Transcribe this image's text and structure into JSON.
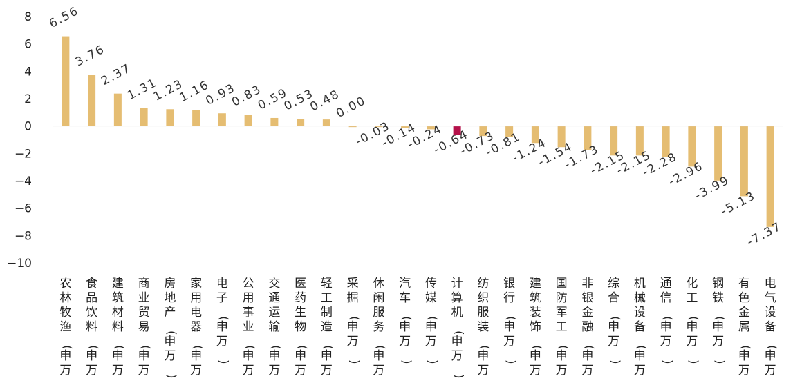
{
  "chart_data": {
    "type": "bar",
    "categories": [
      "农林牧渔(申万)",
      "食品饮料(申万)",
      "建筑材料(申万)",
      "商业贸易(申万)",
      "房地产(申万)",
      "家用电器(申万)",
      "电子(申万)",
      "公用事业(申万)",
      "交通运输(申万)",
      "医药生物(申万)",
      "轻工制造(申万)",
      "采掘(申万)",
      "休闲服务(申万)",
      "汽车(申万)",
      "传媒(申万)",
      "计算机(申万)",
      "纺织服装(申万)",
      "银行(申万)",
      "建筑装饰(申万)",
      "国防军工(申万)",
      "非银金融(申万)",
      "综合(申万)",
      "机械设备(申万)",
      "通信(申万)",
      "化工(申万)",
      "钢铁(申万)",
      "有色金属(申万)",
      "电气设备(申万)"
    ],
    "values": [
      6.56,
      3.76,
      2.37,
      1.31,
      1.23,
      1.16,
      0.93,
      0.83,
      0.59,
      0.53,
      0.48,
      0.0,
      -0.03,
      -0.14,
      -0.24,
      -0.64,
      -0.73,
      -0.81,
      -1.24,
      -1.54,
      -1.73,
      -2.15,
      -2.15,
      -2.28,
      -2.96,
      -3.99,
      -5.13,
      -7.37
    ],
    "data_labels": [
      "6.56",
      "3.76",
      "2.37",
      "1.31",
      "1.23",
      "1.16",
      "0.93",
      "0.83",
      "0.59",
      "0.53",
      "0.48",
      "0.00",
      "-0.03",
      "-0.14",
      "-0.24",
      "-0.64",
      "-0.73",
      "-0.81",
      "-1.24",
      "-1.54",
      "-1.73",
      "-2.15",
      "-2.15",
      "-2.28",
      "-2.96",
      "-3.99",
      "-5.13",
      "-7.37"
    ],
    "highlight_index": 15,
    "ylim": [
      -10,
      8
    ],
    "yticks": [
      8,
      6,
      4,
      2,
      0,
      -2,
      -4,
      -6,
      -8,
      -10
    ],
    "ytick_labels": [
      "8",
      "6",
      "4",
      "2",
      "0",
      "−2",
      "−4",
      "−6",
      "−8",
      "−10"
    ],
    "grid": false,
    "colors": {
      "bar": "#E5BD72",
      "highlight": "#B5114A",
      "axis": "#D9D9D9"
    }
  }
}
